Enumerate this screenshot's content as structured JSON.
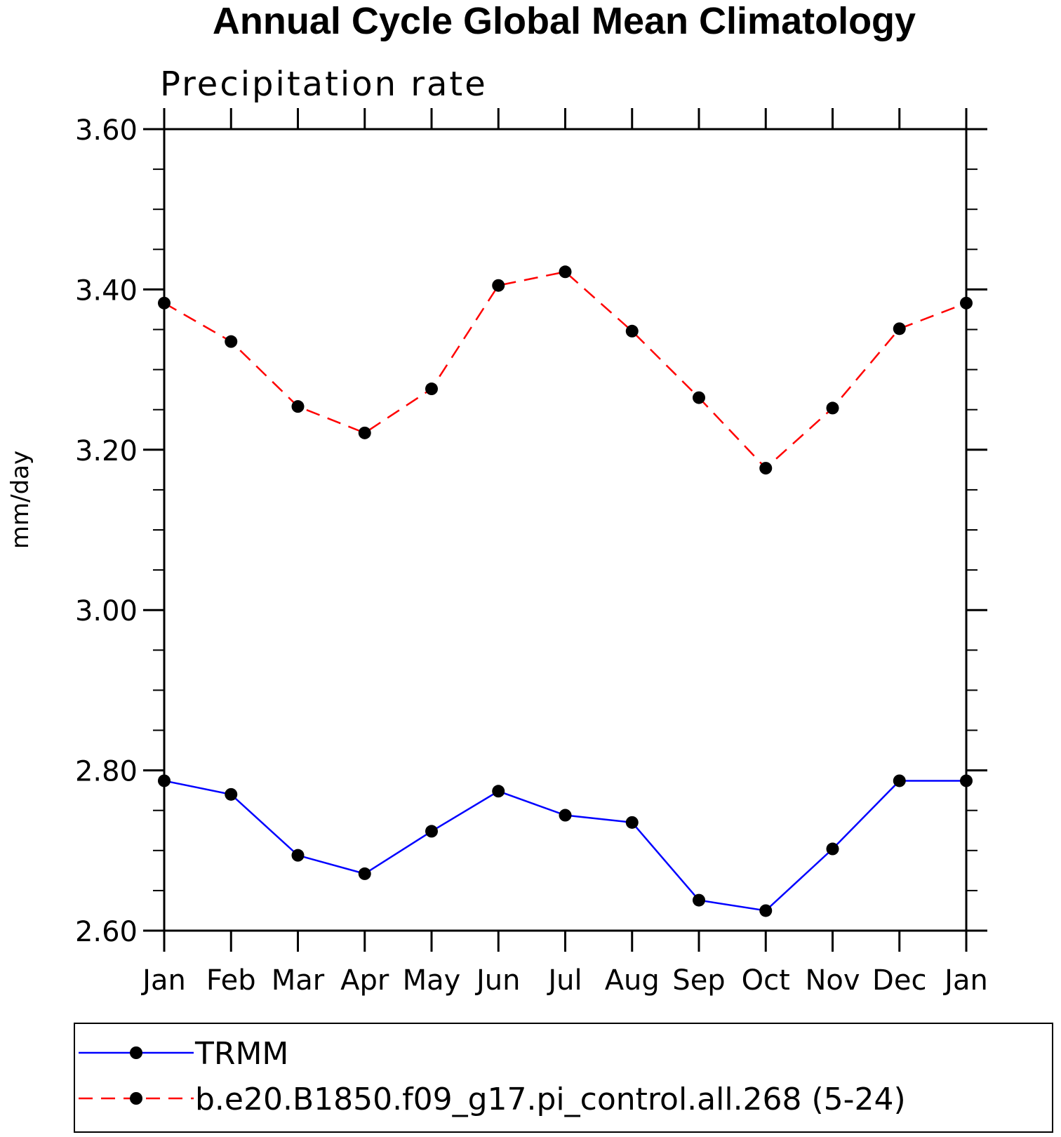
{
  "chart_data": {
    "type": "line",
    "title": "Annual Cycle Global Mean Climatology",
    "subtitle": "Precipitation rate",
    "xlabel": "",
    "ylabel": "mm/day",
    "categories": [
      "Jan",
      "Feb",
      "Mar",
      "Apr",
      "May",
      "Jun",
      "Jul",
      "Aug",
      "Sep",
      "Oct",
      "Nov",
      "Dec",
      "Jan"
    ],
    "ylim": [
      2.6,
      3.6
    ],
    "yticks": [
      2.6,
      2.8,
      3.0,
      3.2,
      3.4,
      3.6
    ],
    "ytick_labels": [
      "2.60",
      "2.80",
      "3.00",
      "3.20",
      "3.40",
      "3.60"
    ],
    "y_minor_step": 0.05,
    "grid": false,
    "legend_position": "bottom",
    "series": [
      {
        "name": "TRMM",
        "color": "#0000ff",
        "line_style": "solid",
        "marker": "filled-circle",
        "values": [
          2.787,
          2.77,
          2.694,
          2.671,
          2.724,
          2.774,
          2.744,
          2.735,
          2.638,
          2.625,
          2.702,
          2.787,
          2.787
        ]
      },
      {
        "name": "b.e20.B1850.f09_g17.pi_control.all.268 (5-24)",
        "color": "#ff0000",
        "line_style": "dashed",
        "marker": "filled-circle",
        "values": [
          3.383,
          3.335,
          3.254,
          3.221,
          3.276,
          3.405,
          3.422,
          3.348,
          3.265,
          3.177,
          3.252,
          3.351,
          3.383
        ]
      }
    ]
  }
}
